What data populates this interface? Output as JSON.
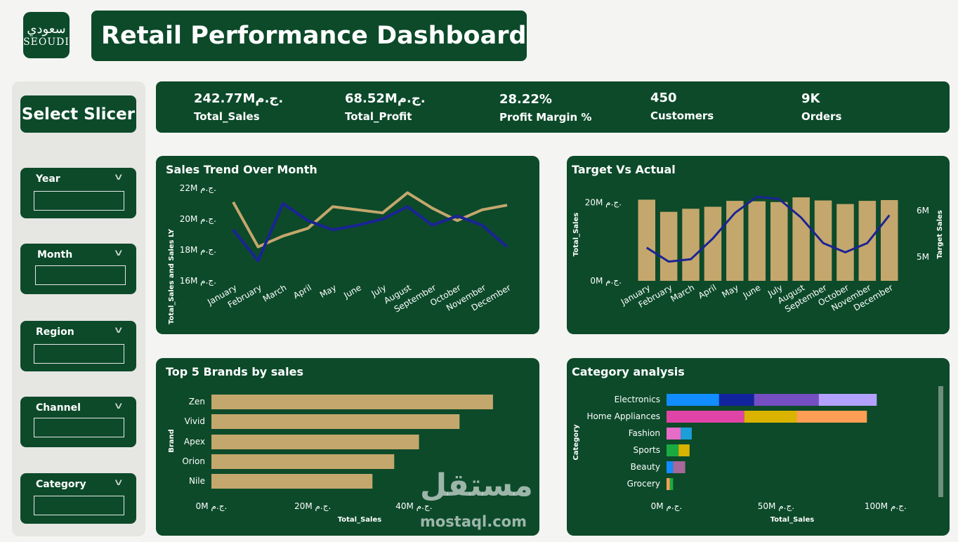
{
  "logo": {
    "line1": "سعودي",
    "line2": "SEOUDI"
  },
  "title": "Retail Performance Dashboard",
  "slicer": {
    "title": "Select Slicer",
    "filters": [
      {
        "label": "Year"
      },
      {
        "label": "Month"
      },
      {
        "label": "Region"
      },
      {
        "label": "Channel"
      },
      {
        "label": "Category"
      }
    ]
  },
  "kpis": [
    {
      "value": "242.77Mج.م.",
      "label": "Total_Sales"
    },
    {
      "value": "68.52Mج.م.",
      "label": "Total_Profit"
    },
    {
      "value": "28.22%",
      "label": "Profit Margin %"
    },
    {
      "value": "450",
      "label": "Customers"
    },
    {
      "value": "9K",
      "label": "Orders"
    }
  ],
  "months": [
    "January",
    "February",
    "March",
    "April",
    "May",
    "June",
    "July",
    "August",
    "September",
    "October",
    "November",
    "December"
  ],
  "sales_trend": {
    "title": "Sales Trend Over Month",
    "ylabel": "Total_Sales and Sales LY",
    "yticks": [
      "22M ج.م.",
      "20M ج.م.",
      "18M ج.م.",
      "16M ج.م."
    ],
    "colors": {
      "series1": "#c4a76c",
      "series2": "#1a2494"
    }
  },
  "target_actual": {
    "title": "Target Vs Actual",
    "ylabel_left": "Total_Sales",
    "ylabel_right": "Target Sales",
    "yticks_left": [
      "20M ج.م.",
      "0M ج.م."
    ],
    "yticks_right": [
      "6M",
      "5M"
    ]
  },
  "brands": {
    "title": "Top 5 Brands by sales",
    "ylabel": "Brand",
    "xlabel": "Total_Sales",
    "xticks": [
      "0M ج.م.",
      "20M ج.م.",
      "40M ج.م."
    ]
  },
  "category": {
    "title": "Category analysis",
    "ylabel": "Category",
    "xlabel": "Total_Sales",
    "xticks": [
      "0M ج.م.",
      "50M ج.م.",
      "100M ج.م."
    ]
  },
  "watermark": {
    "arabic": "مستقل",
    "latin": "mostaql.com"
  },
  "chart_data": [
    {
      "type": "line",
      "title": "Sales Trend Over Month",
      "ylabel": "Total_Sales and Sales LY",
      "x": [
        "January",
        "February",
        "March",
        "April",
        "May",
        "June",
        "July",
        "August",
        "September",
        "October",
        "November",
        "December"
      ],
      "ylim": [
        16,
        22
      ],
      "series": [
        {
          "values": [
            21.1,
            18.2,
            18.9,
            19.4,
            20.8,
            20.6,
            20.4,
            21.7,
            20.7,
            19.9,
            20.6,
            20.9
          ]
        },
        {
          "values": [
            19.3,
            17.3,
            21.0,
            19.9,
            19.3,
            19.6,
            20.0,
            20.8,
            19.6,
            20.2,
            19.6,
            18.2
          ]
        }
      ]
    },
    {
      "type": "bar",
      "title": "Target Vs Actual",
      "ylabel": "Total_Sales",
      "categories": [
        "January",
        "February",
        "March",
        "April",
        "May",
        "June",
        "July",
        "August",
        "September",
        "October",
        "November",
        "December"
      ],
      "ylim": [
        0,
        24
      ],
      "series": [
        {
          "values": [
            20.7,
            17.6,
            18.4,
            18.9,
            20.4,
            20.3,
            20.1,
            21.3,
            20.5,
            19.6,
            20.4,
            20.6
          ]
        },
        {
          "axis": "right",
          "ylim": [
            4.5,
            6.3
          ],
          "values": [
            5.2,
            4.9,
            4.95,
            5.4,
            5.95,
            6.3,
            6.25,
            5.85,
            5.3,
            5.1,
            5.3,
            5.9
          ]
        }
      ]
    },
    {
      "type": "bar",
      "orientation": "horizontal",
      "title": "Top 5 Brands by sales",
      "ylabel": "Brand",
      "xlabel": "Total_Sales",
      "categories": [
        "Zen",
        "Vivid",
        "Apex",
        "Orion",
        "Nile"
      ],
      "values": [
        55.6,
        49.0,
        41.0,
        36.1,
        31.8
      ],
      "xlim": [
        0,
        57
      ]
    },
    {
      "type": "bar",
      "orientation": "horizontal",
      "stacked": true,
      "title": "Category analysis",
      "ylabel": "Category",
      "xlabel": "Total_Sales",
      "categories": [
        "Electronics",
        "Home Appliances",
        "Fashion",
        "Sports",
        "Beauty",
        "Grocery"
      ],
      "xlim": [
        0,
        110
      ],
      "segments": [
        [
          {
            "value": 24,
            "color": "#118dff"
          },
          {
            "value": 16,
            "color": "#12239e"
          },
          {
            "value": 29.5,
            "color": "#744ec2"
          },
          {
            "value": 26.5,
            "color": "#b3a1ff"
          }
        ],
        [
          {
            "value": 35.5,
            "color": "#e044a7"
          },
          {
            "value": 24,
            "color": "#d9b300"
          },
          {
            "value": 32,
            "color": "#fd9e54"
          }
        ],
        [
          {
            "value": 6.5,
            "color": "#e66cc7"
          },
          {
            "value": 5,
            "color": "#1c9fd8"
          }
        ],
        [
          {
            "value": 5.5,
            "color": "#1aab40"
          },
          {
            "value": 5,
            "color": "#d9b300"
          }
        ],
        [
          {
            "value": 3,
            "color": "#118dff"
          },
          {
            "value": 5.5,
            "color": "#a66999"
          }
        ],
        [
          {
            "value": 1.5,
            "color": "#fd9e54"
          },
          {
            "value": 1.5,
            "color": "#1aab40"
          }
        ]
      ]
    }
  ]
}
